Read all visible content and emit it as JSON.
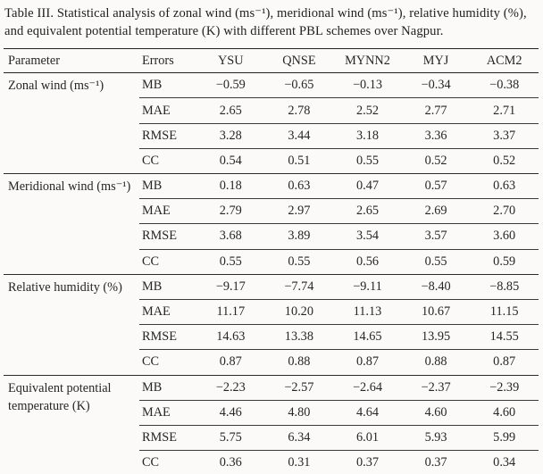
{
  "caption": "Table III. Statistical analysis of zonal wind (ms⁻¹), meridional wind (ms⁻¹), relative humidity (%), and equivalent potential temperature (K) with different PBL schemes over Nagpur.",
  "table": {
    "columns": [
      "Parameter",
      "Errors",
      "YSU",
      "QNSE",
      "MYNN2",
      "MYJ",
      "ACM2"
    ],
    "groups": [
      {
        "parameter": "Zonal wind (ms⁻¹)",
        "rows": [
          {
            "error": "MB",
            "values": [
              "−0.59",
              "−0.65",
              "−0.13",
              "−0.34",
              "−0.38"
            ]
          },
          {
            "error": "MAE",
            "values": [
              "2.65",
              "2.78",
              "2.52",
              "2.77",
              "2.71"
            ]
          },
          {
            "error": "RMSE",
            "values": [
              "3.28",
              "3.44",
              "3.18",
              "3.36",
              "3.37"
            ]
          },
          {
            "error": "CC",
            "values": [
              "0.54",
              "0.51",
              "0.55",
              "0.52",
              "0.52"
            ]
          }
        ]
      },
      {
        "parameter": "Meridional wind (ms⁻¹)",
        "rows": [
          {
            "error": "MB",
            "values": [
              "0.18",
              "0.63",
              "0.47",
              "0.57",
              "0.63"
            ]
          },
          {
            "error": "MAE",
            "values": [
              "2.79",
              "2.97",
              "2.65",
              "2.69",
              "2.70"
            ]
          },
          {
            "error": "RMSE",
            "values": [
              "3.68",
              "3.89",
              "3.54",
              "3.57",
              "3.60"
            ]
          },
          {
            "error": "CC",
            "values": [
              "0.55",
              "0.55",
              "0.56",
              "0.55",
              "0.59"
            ]
          }
        ]
      },
      {
        "parameter": "Relative humidity (%)",
        "rows": [
          {
            "error": "MB",
            "values": [
              "−9.17",
              "−7.74",
              "−9.11",
              "−8.40",
              "−8.85"
            ]
          },
          {
            "error": "MAE",
            "values": [
              "11.17",
              "10.20",
              "11.13",
              "10.67",
              "11.15"
            ]
          },
          {
            "error": "RMSE",
            "values": [
              "14.63",
              "13.38",
              "14.65",
              "13.95",
              "14.55"
            ]
          },
          {
            "error": "CC",
            "values": [
              "0.87",
              "0.88",
              "0.87",
              "0.88",
              "0.87"
            ]
          }
        ]
      },
      {
        "parameter": "Equivalent potential temperature (K)",
        "rows": [
          {
            "error": "MB",
            "values": [
              "−2.23",
              "−2.57",
              "−2.64",
              "−2.37",
              "−2.39"
            ]
          },
          {
            "error": "MAE",
            "values": [
              "4.46",
              "4.80",
              "4.64",
              "4.60",
              "4.60"
            ]
          },
          {
            "error": "RMSE",
            "values": [
              "5.75",
              "6.34",
              "6.01",
              "5.93",
              "5.99"
            ]
          },
          {
            "error": "CC",
            "values": [
              "0.36",
              "0.31",
              "0.37",
              "0.37",
              "0.34"
            ]
          }
        ]
      }
    ]
  }
}
